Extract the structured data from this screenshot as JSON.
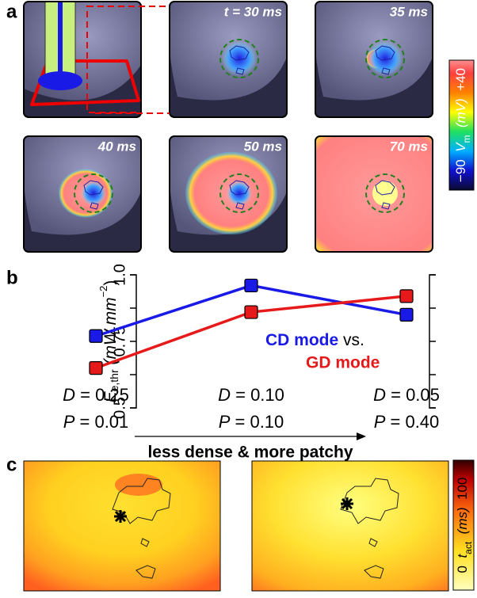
{
  "panel_a": {
    "label": "a",
    "frames": [
      "t = 30 ms",
      "35 ms",
      "40 ms",
      "50 ms",
      "70 ms"
    ],
    "colorbar": {
      "min": "−90",
      "symbol": "V",
      "subscript": "m",
      "unit": "(mV)",
      "max": "+40"
    }
  },
  "chart_data": {
    "type": "line",
    "label": "b",
    "categories": [
      [
        "D = 0.25",
        "P = 0.01"
      ],
      [
        "D = 0.10",
        "P = 0.10"
      ],
      [
        "D = 0.05",
        "P = 0.40"
      ]
    ],
    "series": [
      {
        "name": "CD mode",
        "color": "#1a1ae6",
        "values": [
          0.77,
          0.96,
          0.85
        ]
      },
      {
        "name": "GD mode",
        "color": "#e61a1a",
        "values": [
          0.65,
          0.86,
          0.92
        ]
      }
    ],
    "legend_joiner": "vs.",
    "y_label": {
      "symbol": "E",
      "subscript": "e,thr",
      "unit": "(mW mm",
      "exponent": "−2",
      "close": ")"
    },
    "ylim": [
      0.5,
      1
    ],
    "yticks": [
      0.5,
      0.75,
      {
        "value": 1,
        "label": "1.0"
      }
    ],
    "yminorticks": [
      0.625,
      0.875
    ],
    "x_arrow_label": "less dense & more patchy"
  },
  "panel_c": {
    "label": "c",
    "colorbar": {
      "min": "0",
      "symbol": "t",
      "subscript": "act",
      "unit": "(ms)",
      "max": "100"
    }
  }
}
